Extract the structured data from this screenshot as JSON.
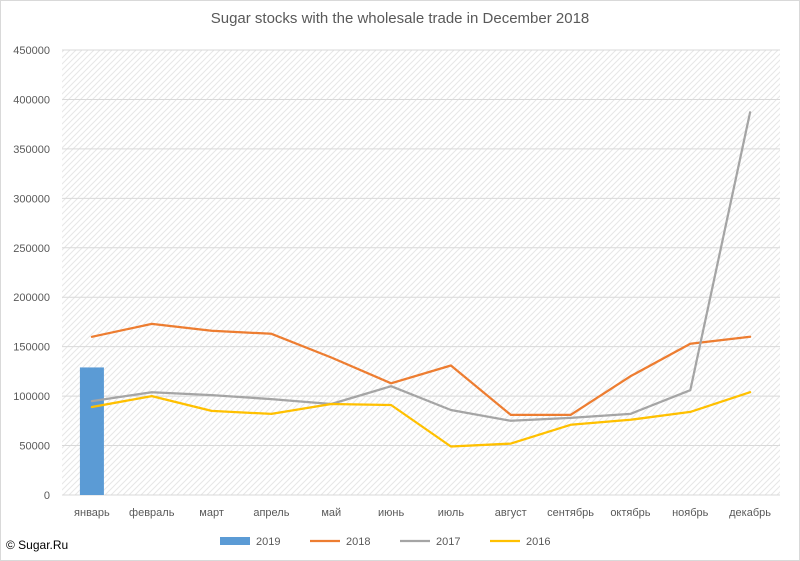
{
  "chart_data": {
    "type": "line",
    "title": "Sugar stocks with the wholesale trade in December 2018",
    "categories": [
      "январь",
      "февраль",
      "март",
      "апрель",
      "май",
      "июнь",
      "июль",
      "август",
      "сентябрь",
      "октябрь",
      "ноябрь",
      "декабрь"
    ],
    "y_ticks": [
      "0",
      "50000",
      "100000",
      "150000",
      "200000",
      "250000",
      "300000",
      "350000",
      "400000",
      "450000"
    ],
    "ylim": [
      0,
      450000
    ],
    "grid": true,
    "legend_position": "bottom",
    "series": [
      {
        "name": "2019",
        "type": "bar",
        "color": "#5B9BD5",
        "values": [
          129000,
          null,
          null,
          null,
          null,
          null,
          null,
          null,
          null,
          null,
          null,
          null
        ]
      },
      {
        "name": "2018",
        "type": "line",
        "color": "#ED7D31",
        "values": [
          160000,
          173000,
          166000,
          163000,
          139000,
          113000,
          131000,
          81000,
          81000,
          120000,
          153000,
          160000
        ]
      },
      {
        "name": "2017",
        "type": "line",
        "color": "#A5A5A5",
        "values": [
          95000,
          104000,
          101000,
          97000,
          92000,
          110000,
          86000,
          75000,
          78000,
          82000,
          106000,
          387000
        ]
      },
      {
        "name": "2016",
        "type": "line",
        "color": "#FFC000",
        "values": [
          89000,
          100000,
          85000,
          82000,
          92000,
          91000,
          49000,
          52000,
          71000,
          76000,
          84000,
          104000
        ]
      }
    ]
  },
  "copyright": "© Sugar.Ru"
}
